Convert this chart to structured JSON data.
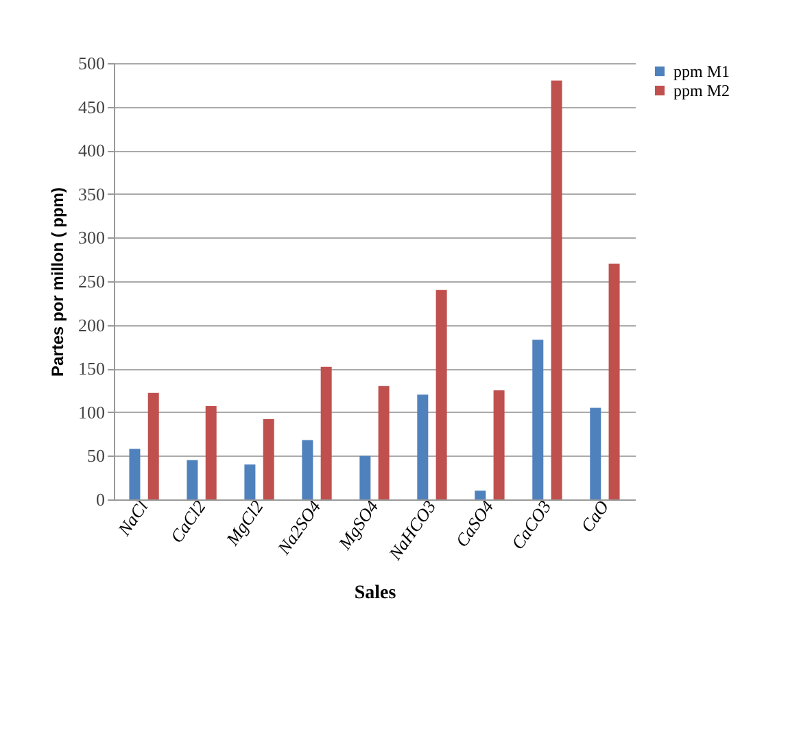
{
  "chart_data": {
    "type": "bar",
    "xlabel": "Sales",
    "ylabel": "Partes por millon ( ppm)",
    "categories": [
      "NaCl",
      "CaCl2",
      "MgCl2",
      "Na2SO4",
      "MgSO4",
      "NaHCO3",
      "CaSO4",
      "CaCO3",
      "CaO"
    ],
    "series": [
      {
        "name": "ppm M1",
        "color": "#4f81bd",
        "values": [
          58,
          45,
          40,
          68,
          50,
          120,
          10,
          183,
          105
        ]
      },
      {
        "name": "ppm M2",
        "color": "#c0504d",
        "values": [
          122,
          107,
          92,
          152,
          130,
          240,
          125,
          480,
          270
        ]
      }
    ],
    "ylim": [
      0,
      500
    ],
    "yticks": [
      0,
      50,
      100,
      150,
      200,
      250,
      300,
      350,
      400,
      450,
      500
    ],
    "grid": true,
    "legend": "right"
  }
}
